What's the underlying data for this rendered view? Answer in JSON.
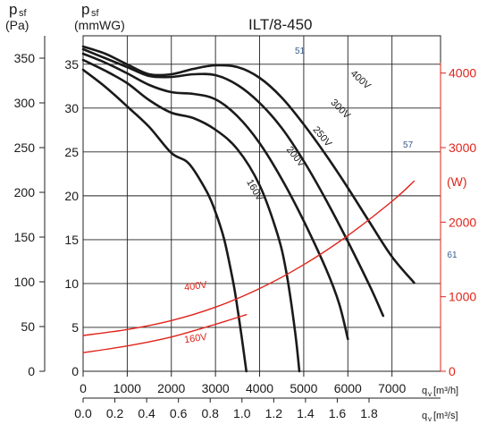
{
  "chart_data": {
    "type": "line",
    "title": "ILT/8-450",
    "ylabel_pa": {
      "sym": "p",
      "sub": "sf",
      "unit": "(Pa)"
    },
    "ylabel_mmwg": {
      "sym": "p",
      "sub": "sf",
      "unit": "(mmWG)"
    },
    "ylabel_power": "(W)",
    "xlabel_m3h": {
      "sym": "q",
      "sub": "v",
      "unit": "[m³/h]"
    },
    "xlabel_m3s": {
      "sym": "q",
      "sub": "v",
      "unit": "[m³/s]"
    },
    "xlim_m3h": [
      0,
      8100
    ],
    "ylim_pa": [
      0,
      375
    ],
    "ylim_w": [
      0,
      4500
    ],
    "x_ticks_m3h": [
      "0",
      "1000",
      "2000",
      "3000",
      "4000",
      "5000",
      "6000",
      "7000"
    ],
    "x_ticks_m3h_values": [
      0,
      1000,
      2000,
      3000,
      4000,
      5000,
      6000,
      7000
    ],
    "x_ticks_m3s": [
      "0.0",
      "0.2",
      "0.4",
      "0.6",
      "0.8",
      "1.0",
      "1.2",
      "1.4",
      "1.6",
      "1.8"
    ],
    "x_ticks_m3s_values": [
      0,
      0.2,
      0.4,
      0.6,
      0.8,
      1.0,
      1.2,
      1.4,
      1.6,
      1.8
    ],
    "y_ticks_pa": [
      "0",
      "50",
      "100",
      "150",
      "200",
      "250",
      "300",
      "350"
    ],
    "y_ticks_pa_values": [
      0,
      50,
      100,
      150,
      200,
      250,
      300,
      350
    ],
    "y_ticks_mmwg": [
      "0",
      "5",
      "10",
      "15",
      "20",
      "25",
      "30",
      "35"
    ],
    "y_ticks_mmwg_values": [
      0,
      5,
      10,
      15,
      20,
      25,
      30,
      35
    ],
    "y_ticks_w": [
      "0",
      "1000",
      "2000",
      "3000",
      "4000"
    ],
    "y_ticks_w_values": [
      0,
      1000,
      2000,
      3000,
      4000
    ],
    "grid": true,
    "series": [
      {
        "name": "400V",
        "axis": "pressure",
        "x": [
          0,
          500,
          1000,
          1500,
          2000,
          2500,
          3000,
          3500,
          4000,
          4500,
          5000,
          5500,
          6000,
          6500,
          7000,
          7500
        ],
        "y": [
          363,
          355,
          343,
          332,
          332,
          338,
          342,
          340,
          328,
          306,
          276,
          242,
          205,
          166,
          128,
          99
        ]
      },
      {
        "name": "300V",
        "axis": "pressure",
        "x": [
          0,
          500,
          1000,
          1500,
          2000,
          2500,
          3000,
          3500,
          4000,
          4500,
          5000,
          5500,
          6000,
          6500,
          6800
        ],
        "y": [
          360,
          350,
          340,
          330,
          329,
          332,
          331,
          320,
          300,
          272,
          235,
          192,
          145,
          95,
          62
        ]
      },
      {
        "name": "250V",
        "axis": "pressure",
        "x": [
          0,
          500,
          1000,
          1500,
          2000,
          2500,
          3000,
          3500,
          4000,
          4500,
          5000,
          5500,
          5800,
          6000
        ],
        "y": [
          355,
          345,
          333,
          320,
          312,
          310,
          304,
          285,
          255,
          215,
          168,
          115,
          76,
          36
        ]
      },
      {
        "name": "200V",
        "axis": "pressure",
        "x": [
          0,
          500,
          1000,
          1500,
          2000,
          2500,
          3000,
          3500,
          4000,
          4400,
          4600,
          4800,
          4900
        ],
        "y": [
          348,
          336,
          322,
          303,
          289,
          283,
          270,
          248,
          208,
          154,
          112,
          46,
          0
        ]
      },
      {
        "name": "160V",
        "axis": "pressure",
        "x": [
          0,
          500,
          1000,
          1500,
          2000,
          2400,
          2800,
          3000,
          3200,
          3400,
          3500,
          3600,
          3700
        ],
        "y": [
          337,
          318,
          296,
          273,
          244,
          232,
          201,
          178,
          147,
          100,
          70,
          36,
          0
        ]
      },
      {
        "name": "400V",
        "axis": "power",
        "x": [
          0,
          1000,
          2000,
          3000,
          4000,
          5000,
          6000,
          7000,
          7500
        ],
        "y": [
          480,
          560,
          680,
          860,
          1110,
          1430,
          1820,
          2280,
          2550
        ]
      },
      {
        "name": "160V",
        "axis": "power",
        "x": [
          0,
          1000,
          2000,
          3000,
          3700
        ],
        "y": [
          250,
          340,
          460,
          630,
          760
        ]
      }
    ],
    "pressure_curve_labels": [
      "400V",
      "300V",
      "250V",
      "200V",
      "160V"
    ],
    "power_curve_labels": [
      "400V",
      "160V"
    ],
    "efficiency_labels": [
      "51",
      "57",
      "61"
    ]
  }
}
